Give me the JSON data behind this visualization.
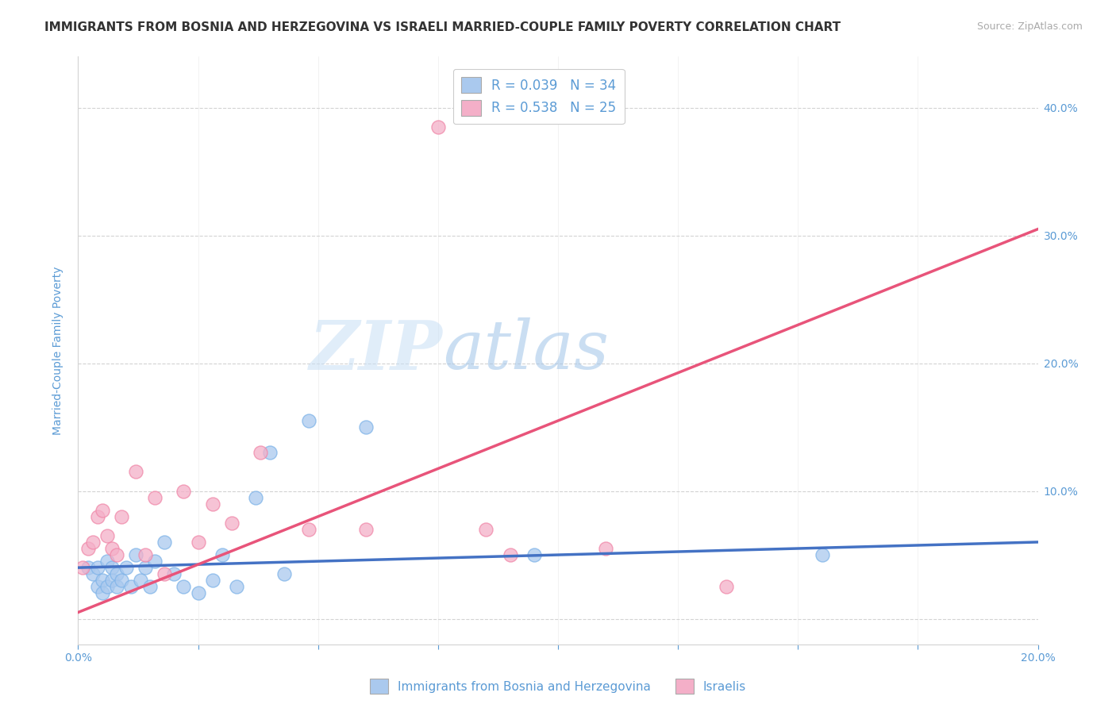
{
  "title": "IMMIGRANTS FROM BOSNIA AND HERZEGOVINA VS ISRAELI MARRIED-COUPLE FAMILY POVERTY CORRELATION CHART",
  "source": "Source: ZipAtlas.com",
  "ylabel": "Married-Couple Family Poverty",
  "xlim": [
    0.0,
    0.2
  ],
  "ylim": [
    -0.02,
    0.44
  ],
  "yticks": [
    0.0,
    0.1,
    0.2,
    0.3,
    0.4
  ],
  "ytick_labels": [
    "",
    "10.0%",
    "20.0%",
    "30.0%",
    "40.0%"
  ],
  "xticks": [
    0.0,
    0.025,
    0.05,
    0.075,
    0.1,
    0.125,
    0.15,
    0.175,
    0.2
  ],
  "xtick_labels_show": {
    "0.0": "0.0%",
    "0.20": "20.0%"
  },
  "legend_entries": [
    {
      "label": "R = 0.039   N = 34",
      "color": "#aac9ee"
    },
    {
      "label": "R = 0.538   N = 25",
      "color": "#f4afc8"
    }
  ],
  "blue_color": "#aac9ee",
  "pink_color": "#f4afc8",
  "blue_edge": "#7eb3e8",
  "pink_edge": "#f087a8",
  "line_blue": "#4472c4",
  "line_pink": "#e8547a",
  "axis_color": "#5b9bd5",
  "grid_color": "#d3d3d3",
  "blue_scatter_x": [
    0.002,
    0.003,
    0.004,
    0.004,
    0.005,
    0.005,
    0.006,
    0.006,
    0.007,
    0.007,
    0.008,
    0.008,
    0.009,
    0.01,
    0.011,
    0.012,
    0.013,
    0.014,
    0.015,
    0.016,
    0.018,
    0.02,
    0.022,
    0.025,
    0.028,
    0.03,
    0.033,
    0.037,
    0.04,
    0.043,
    0.048,
    0.06,
    0.095,
    0.155
  ],
  "blue_scatter_y": [
    0.04,
    0.035,
    0.04,
    0.025,
    0.03,
    0.02,
    0.045,
    0.025,
    0.04,
    0.03,
    0.035,
    0.025,
    0.03,
    0.04,
    0.025,
    0.05,
    0.03,
    0.04,
    0.025,
    0.045,
    0.06,
    0.035,
    0.025,
    0.02,
    0.03,
    0.05,
    0.025,
    0.095,
    0.13,
    0.035,
    0.155,
    0.15,
    0.05,
    0.05
  ],
  "pink_scatter_x": [
    0.001,
    0.002,
    0.003,
    0.004,
    0.005,
    0.006,
    0.007,
    0.008,
    0.009,
    0.012,
    0.014,
    0.016,
    0.018,
    0.022,
    0.025,
    0.028,
    0.032,
    0.038,
    0.048,
    0.06,
    0.075,
    0.085,
    0.09,
    0.11,
    0.135
  ],
  "pink_scatter_y": [
    0.04,
    0.055,
    0.06,
    0.08,
    0.085,
    0.065,
    0.055,
    0.05,
    0.08,
    0.115,
    0.05,
    0.095,
    0.035,
    0.1,
    0.06,
    0.09,
    0.075,
    0.13,
    0.07,
    0.07,
    0.385,
    0.07,
    0.05,
    0.055,
    0.025
  ],
  "blue_line_x": [
    0.0,
    0.2
  ],
  "blue_line_y": [
    0.04,
    0.06
  ],
  "pink_line_x": [
    0.0,
    0.2
  ],
  "pink_line_y": [
    0.005,
    0.305
  ],
  "title_fontsize": 11,
  "source_fontsize": 9,
  "label_fontsize": 10,
  "tick_fontsize": 10,
  "legend_fontsize": 12,
  "background_color": "#ffffff"
}
